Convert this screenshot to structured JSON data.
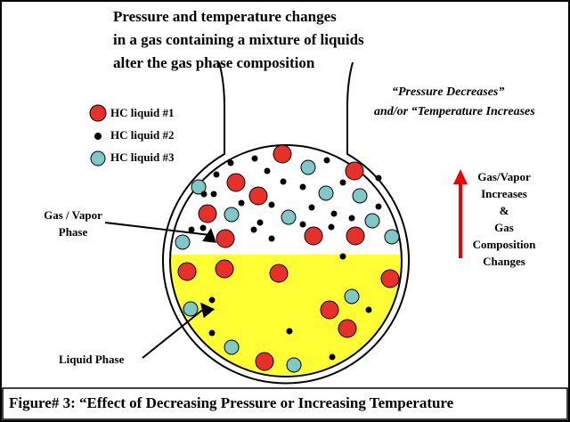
{
  "title": [
    "Pressure and temperature changes",
    "in a gas containing a mixture of liquids",
    "alter the gas phase composition"
  ],
  "condition": [
    "“Pressure Decreases”",
    "and/or “Temperature Increases"
  ],
  "legend": [
    "HC liquid #1",
    "HC liquid #2",
    "HC liquid #3"
  ],
  "gas_label": [
    "Gas / Vapor",
    "Phase"
  ],
  "liquid_label": "Liquid Phase",
  "effect": [
    "Gas/Vapor",
    "Increases",
    "&",
    "Gas",
    "Composition",
    "Changes"
  ],
  "caption": "Figure# 3: “Effect of Decreasing Pressure or Increasing Temperature"
}
